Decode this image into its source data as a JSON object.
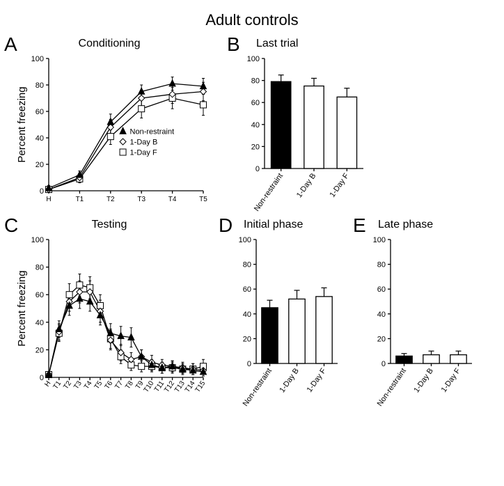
{
  "main_title": "Adult controls",
  "colors": {
    "text": "#000000",
    "axis": "#000000",
    "series_fill_black": "#000000",
    "series_open": "#ffffff",
    "bar_black": "#000000",
    "bar_open": "#ffffff",
    "background": "#ffffff"
  },
  "series_legend": {
    "non_restraint": "Non-restraint",
    "one_day_b": "1-Day B",
    "one_day_f": "1-Day F"
  },
  "panels": {
    "A": {
      "letter": "A",
      "title": "Conditioning",
      "ylabel": "Percent freezing",
      "ylim": [
        0,
        100
      ],
      "ytick_step": 20,
      "x_categories": [
        "H",
        "T1",
        "T2",
        "T3",
        "T4",
        "T5"
      ],
      "series": {
        "non_restraint": {
          "marker": "triangle",
          "fill": "#000000",
          "line_color": "#000000",
          "values": [
            2,
            12,
            52,
            75,
            81,
            79
          ],
          "errors": [
            2,
            3,
            6,
            5,
            5,
            6
          ]
        },
        "one_day_b": {
          "marker": "diamond",
          "fill": "#ffffff",
          "line_color": "#000000",
          "values": [
            1,
            10,
            48,
            70,
            73,
            75
          ],
          "errors": [
            2,
            3,
            6,
            6,
            7,
            7
          ]
        },
        "one_day_f": {
          "marker": "square",
          "fill": "#ffffff",
          "line_color": "#000000",
          "values": [
            1,
            9,
            41,
            62,
            70,
            65
          ],
          "errors": [
            2,
            3,
            6,
            7,
            8,
            8
          ]
        }
      }
    },
    "B": {
      "letter": "B",
      "title": "Last trial",
      "ylabel": "",
      "ylim": [
        0,
        100
      ],
      "ytick_step": 20,
      "categories": [
        "Non-restraint",
        "1-Day B",
        "1-Day F"
      ],
      "values": [
        79,
        75,
        65
      ],
      "errors": [
        6,
        7,
        8
      ],
      "bar_colors": [
        "#000000",
        "#ffffff",
        "#ffffff"
      ],
      "bar_width": 0.6
    },
    "C": {
      "letter": "C",
      "title": "Testing",
      "ylabel": "Percent freezing",
      "ylim": [
        0,
        100
      ],
      "ytick_step": 20,
      "x_categories": [
        "H",
        "T1",
        "T2",
        "T3",
        "T4",
        "T5",
        "T6",
        "T7",
        "T8",
        "T9",
        "T10",
        "T11",
        "T12",
        "T13",
        "T14",
        "T15"
      ],
      "series": {
        "non_restraint": {
          "marker": "triangle",
          "fill": "#000000",
          "line_color": "#000000",
          "values": [
            2,
            35,
            52,
            57,
            55,
            45,
            32,
            30,
            29,
            15,
            9,
            7,
            8,
            6,
            5,
            4
          ],
          "errors": [
            2,
            6,
            7,
            7,
            7,
            7,
            7,
            7,
            7,
            5,
            4,
            4,
            4,
            3,
            3,
            3
          ]
        },
        "one_day_b": {
          "marker": "diamond",
          "fill": "#ffffff",
          "line_color": "#000000",
          "values": [
            2,
            33,
            55,
            62,
            62,
            48,
            27,
            18,
            13,
            15,
            11,
            9,
            8,
            7,
            6,
            5
          ],
          "errors": [
            2,
            6,
            7,
            8,
            8,
            8,
            7,
            6,
            5,
            5,
            5,
            4,
            4,
            4,
            4,
            4
          ]
        },
        "one_day_f": {
          "marker": "square",
          "fill": "#ffffff",
          "line_color": "#000000",
          "values": [
            2,
            32,
            60,
            67,
            65,
            52,
            28,
            15,
            9,
            8,
            8,
            7,
            7,
            6,
            6,
            8
          ],
          "errors": [
            2,
            6,
            8,
            8,
            8,
            8,
            7,
            5,
            4,
            4,
            4,
            4,
            4,
            4,
            4,
            5
          ]
        }
      }
    },
    "D": {
      "letter": "D",
      "title": "Initial phase",
      "ylabel": "",
      "ylim": [
        0,
        100
      ],
      "ytick_step": 20,
      "categories": [
        "Non-restraint",
        "1-Day B",
        "1-Day F"
      ],
      "values": [
        45,
        52,
        54
      ],
      "errors": [
        6,
        7,
        7
      ],
      "bar_colors": [
        "#000000",
        "#ffffff",
        "#ffffff"
      ],
      "bar_width": 0.6
    },
    "E": {
      "letter": "E",
      "title": "Late phase",
      "ylabel": "",
      "ylim": [
        0,
        100
      ],
      "ytick_step": 20,
      "categories": [
        "Non-restraint",
        "1-Day B",
        "1-Day F"
      ],
      "values": [
        6,
        7,
        7
      ],
      "errors": [
        2,
        3,
        3
      ],
      "bar_colors": [
        "#000000",
        "#ffffff",
        "#ffffff"
      ],
      "bar_width": 0.6
    }
  },
  "style": {
    "axis_stroke_width": 1.3,
    "line_stroke_width": 1.3,
    "error_cap_width": 4,
    "marker_size": 4.5,
    "tick_len": 4,
    "font_family": "Arial"
  }
}
